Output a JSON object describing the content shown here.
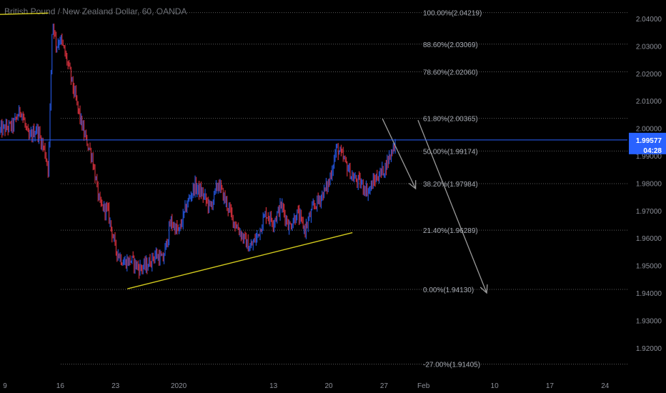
{
  "header": {
    "title": "British Pound / New Zealand Dollar, 60, OANDA"
  },
  "price_badge": {
    "price": "1.99577",
    "countdown": "04:28"
  },
  "colors": {
    "background": "#000000",
    "bull": "#2962ff",
    "bear": "#f23645",
    "trendline": "#d4cc1e",
    "current_line": "#2962ff",
    "arrow": "#9a9a9a",
    "fib": "#5a5a5a"
  },
  "chart_data": {
    "type": "line",
    "title": "British Pound / New Zealand Dollar, 60, OANDA",
    "ylim": [
      1.9012,
      2.0488
    ],
    "y_ticks": [
      {
        "value": 2.04,
        "label": "2.04000"
      },
      {
        "value": 2.03,
        "label": "2.03000"
      },
      {
        "value": 2.02,
        "label": "2.02000"
      },
      {
        "value": 2.01,
        "label": "2.01000"
      },
      {
        "value": 2.0,
        "label": "2.00000"
      },
      {
        "value": 1.99,
        "label": "1.99000"
      },
      {
        "value": 1.98,
        "label": "1.98000"
      },
      {
        "value": 1.97,
        "label": "1.97000"
      },
      {
        "value": 1.96,
        "label": "1.96000"
      },
      {
        "value": 1.95,
        "label": "1.95000"
      },
      {
        "value": 1.94,
        "label": "1.94000"
      },
      {
        "value": 1.93,
        "label": "1.93000"
      },
      {
        "value": 1.92,
        "label": "1.92000"
      }
    ],
    "x_ticks": [
      {
        "day": 0,
        "label": "9"
      },
      {
        "day": 7,
        "label": "16"
      },
      {
        "day": 14,
        "label": "23"
      },
      {
        "day": 22,
        "label": "2020"
      },
      {
        "day": 34,
        "label": "13"
      },
      {
        "day": 41,
        "label": "20"
      },
      {
        "day": 48,
        "label": "27"
      },
      {
        "day": 53,
        "label": "Feb"
      },
      {
        "day": 62,
        "label": "10"
      },
      {
        "day": 69,
        "label": "17"
      },
      {
        "day": 76,
        "label": "24"
      }
    ],
    "fib_levels": [
      {
        "pct": "100.00%",
        "price": 2.04219,
        "label": "100.00%(2.04219)"
      },
      {
        "pct": "88.60%",
        "price": 2.03069,
        "label": "88.60%(2.03069)"
      },
      {
        "pct": "78.60%",
        "price": 2.0206,
        "label": "78.60%(2.02060)"
      },
      {
        "pct": "61.80%",
        "price": 2.00365,
        "label": "61.80%(2.00365)"
      },
      {
        "pct": "50.00%",
        "price": 1.99174,
        "label": "50.00%(1.99174)"
      },
      {
        "pct": "38.20%",
        "price": 1.97984,
        "label": "38.20%(1.97984)"
      },
      {
        "pct": "21.40%",
        "price": 1.96289,
        "label": "21.40%(1.96289)"
      },
      {
        "pct": "0.00%",
        "price": 1.9413,
        "label": "0.00%(1.94130)"
      },
      {
        "pct": "-27.00%",
        "price": 1.91405,
        "label": "-27.00%(1.91405)"
      }
    ],
    "current_price": 1.99577,
    "series": [
      {
        "x": [
          -0.8,
          0,
          1,
          2,
          3,
          4,
          5,
          5.5,
          6,
          6.5,
          7,
          8,
          9,
          10,
          11,
          12,
          13,
          14,
          15,
          16,
          17,
          18,
          19,
          20,
          21,
          22,
          23,
          24,
          25,
          26,
          27,
          28,
          29,
          30,
          31,
          32,
          33,
          34,
          35,
          36,
          37,
          38,
          39,
          40,
          41,
          42,
          43,
          44,
          45,
          46,
          47,
          48,
          49,
          49.5
        ],
        "y": [
          1.999,
          2.0,
          2.001,
          2.007,
          1.996,
          2.0,
          1.992,
          1.985,
          2.04,
          2.03,
          2.033,
          2.023,
          2.01,
          1.998,
          1.99,
          1.972,
          1.97,
          1.956,
          1.951,
          1.952,
          1.949,
          1.95,
          1.954,
          1.952,
          1.966,
          1.962,
          1.972,
          1.979,
          1.976,
          1.971,
          1.98,
          1.973,
          1.966,
          1.961,
          1.956,
          1.961,
          1.969,
          1.966,
          1.972,
          1.964,
          1.969,
          1.963,
          1.971,
          1.975,
          1.98,
          1.993,
          1.988,
          1.982,
          1.98,
          1.977,
          1.982,
          1.985,
          1.992,
          1.996
        ]
      }
    ],
    "trendlines": [
      {
        "x1": 15.5,
        "y1": 1.9415,
        "x2": 44,
        "y2": 1.962
      },
      {
        "x1": -0.8,
        "y1": 2.0415,
        "x2": 5.5,
        "y2": 2.042
      }
    ],
    "projection_arrows": [
      {
        "x1": 47.8,
        "y1": 2.0035,
        "x2": 52,
        "y2": 1.978
      },
      {
        "x1": 52.3,
        "y1": 2.003,
        "x2": 61,
        "y2": 1.94
      }
    ]
  }
}
